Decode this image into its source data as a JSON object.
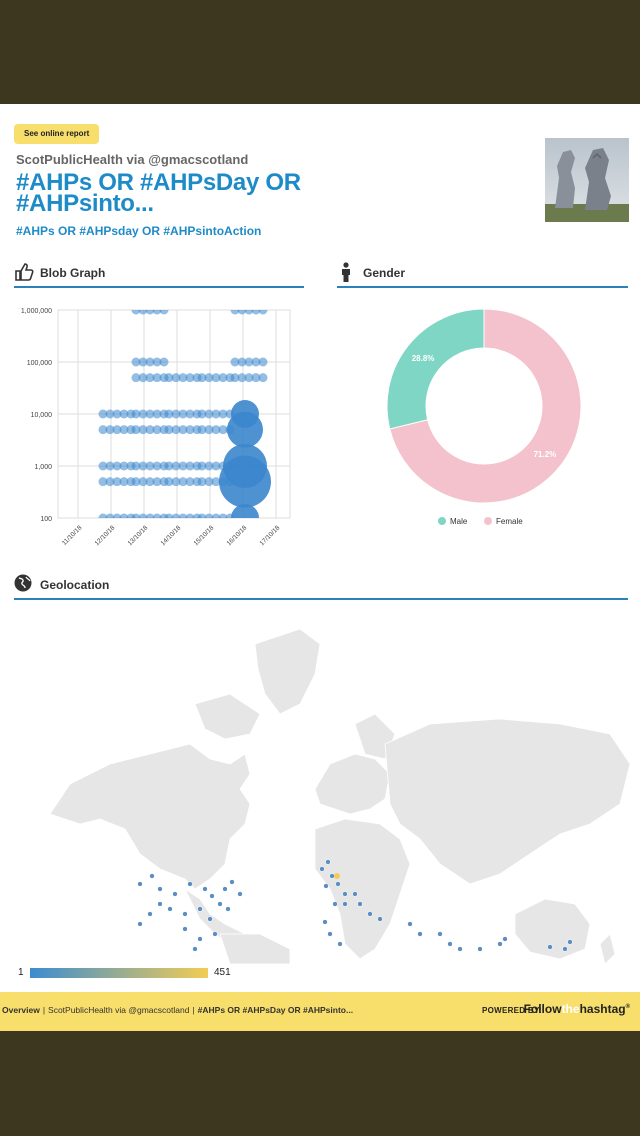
{
  "header": {
    "online_report_label": "See online report",
    "source": "ScotPublicHealth via @gmacscotland",
    "title": "#AHPs OR #AHPsDay OR #AHPsinto...",
    "subtitle": "#AHPs OR #AHPsday OR #AHPsintoAction"
  },
  "sections": {
    "blob": {
      "label": "Blob Graph",
      "icon": "thumbs-up-icon"
    },
    "gender": {
      "label": "Gender",
      "icon": "person-icon"
    },
    "geo": {
      "label": "Geolocation",
      "icon": "globe-icon"
    }
  },
  "chart_data": [
    {
      "type": "scatter",
      "title": "Blob Graph",
      "y_scale": "log",
      "ylim": [
        100,
        1000000
      ],
      "y_ticks": [
        "100",
        "1,000",
        "10,000",
        "100,000",
        "1,000,000"
      ],
      "x_ticks": [
        "11/10/18",
        "12/10/18",
        "13/10/18",
        "14/10/18",
        "15/10/18",
        "16/10/18",
        "17/10/18"
      ],
      "grid": true,
      "points": [
        {
          "x": "12/10/18",
          "y": 1000,
          "size": 6
        },
        {
          "x": "12/10/18",
          "y": 500,
          "size": 6
        },
        {
          "x": "12/10/18",
          "y": 10000,
          "size": 5
        },
        {
          "x": "12/10/18",
          "y": 5000,
          "size": 5
        },
        {
          "x": "12/10/18",
          "y": 100,
          "size": 5
        },
        {
          "x": "13/10/18",
          "y": 100000,
          "size": 5
        },
        {
          "x": "13/10/18",
          "y": 50000,
          "size": 5
        },
        {
          "x": "13/10/18",
          "y": 1000000,
          "size": 5
        },
        {
          "x": "13/10/18",
          "y": 10000,
          "size": 5
        },
        {
          "x": "13/10/18",
          "y": 5000,
          "size": 6
        },
        {
          "x": "13/10/18",
          "y": 1000,
          "size": 6
        },
        {
          "x": "13/10/18",
          "y": 500,
          "size": 6
        },
        {
          "x": "13/10/18",
          "y": 100,
          "size": 6
        },
        {
          "x": "14/10/18",
          "y": 10000,
          "size": 5
        },
        {
          "x": "14/10/18",
          "y": 5000,
          "size": 6
        },
        {
          "x": "14/10/18",
          "y": 1000,
          "size": 6
        },
        {
          "x": "14/10/18",
          "y": 500,
          "size": 6
        },
        {
          "x": "14/10/18",
          "y": 50000,
          "size": 5
        },
        {
          "x": "14/10/18",
          "y": 100,
          "size": 6
        },
        {
          "x": "15/10/18",
          "y": 50000,
          "size": 5
        },
        {
          "x": "15/10/18",
          "y": 10000,
          "size": 5
        },
        {
          "x": "15/10/18",
          "y": 5000,
          "size": 5
        },
        {
          "x": "15/10/18",
          "y": 1000,
          "size": 6
        },
        {
          "x": "15/10/18",
          "y": 500,
          "size": 6
        },
        {
          "x": "15/10/18",
          "y": 100,
          "size": 6
        },
        {
          "x": "16/10/18",
          "y": 1000000,
          "size": 7
        },
        {
          "x": "16/10/18",
          "y": 100000,
          "size": 8
        },
        {
          "x": "16/10/18",
          "y": 50000,
          "size": 9
        },
        {
          "x": "16/10/18",
          "y": 10000,
          "size": 14
        },
        {
          "x": "16/10/18",
          "y": 5000,
          "size": 18
        },
        {
          "x": "16/10/18",
          "y": 1000,
          "size": 22
        },
        {
          "x": "16/10/18",
          "y": 500,
          "size": 26
        },
        {
          "x": "16/10/18",
          "y": 100,
          "size": 14
        }
      ]
    },
    {
      "type": "pie",
      "title": "Gender",
      "slices": [
        {
          "label": "Male",
          "value": 28.8,
          "display": "28.8%",
          "color": "#7fd6c5"
        },
        {
          "label": "Female",
          "value": 71.2,
          "display": "71.2%",
          "color": "#f4c2cd"
        }
      ],
      "legend_placement": "bottom"
    }
  ],
  "geo": {
    "scale_min": "1",
    "scale_max": "451",
    "scale_colors": [
      "#3d8cd0",
      "#f2cc55"
    ],
    "dot_color": "#5b8fc4"
  },
  "footer": {
    "crumb_overview": "Overview",
    "crumb_source": "ScotPublicHealth via @gmacscotland",
    "crumb_query": "#AHPs OR #AHPsDay OR #AHPsinto...",
    "powered_by": "POWERED BY:",
    "brand_follow": "Follow",
    "brand_the": "the",
    "brand_hashtag": "hashtag"
  }
}
